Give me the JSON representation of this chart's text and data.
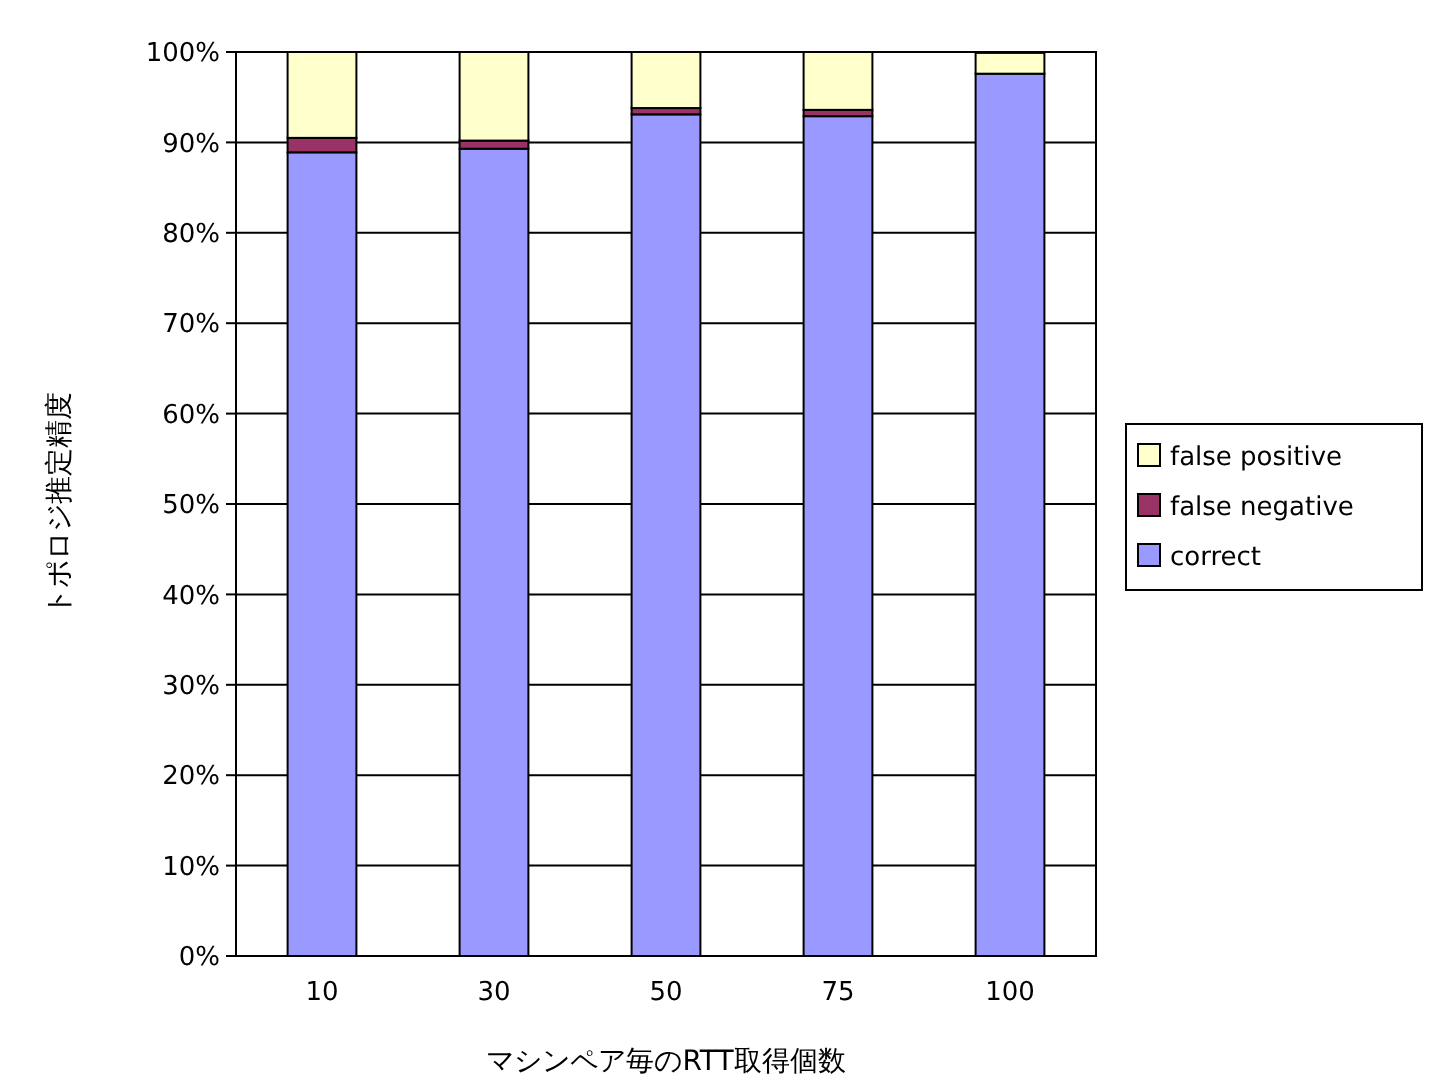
{
  "chart_data": {
    "type": "bar",
    "stacked": true,
    "xlabel": "マシンペア毎のRTT取得個数",
    "ylabel": "トポロジ推定精度",
    "categories": [
      "10",
      "30",
      "50",
      "75",
      "100"
    ],
    "series": [
      {
        "name": "correct",
        "color": "#9999ff",
        "values": [
          88.9,
          89.3,
          93.1,
          92.9,
          97.6
        ]
      },
      {
        "name": "false negative",
        "color": "#993366",
        "values": [
          1.6,
          0.9,
          0.7,
          0.7,
          null
        ]
      },
      {
        "name": "false positive",
        "color": "#ffffcc",
        "values": [
          9.5,
          9.8,
          6.2,
          6.4,
          2.3
        ]
      }
    ],
    "ylim": [
      0,
      100
    ],
    "yticks": [
      {
        "value": 0,
        "label": "0%"
      },
      {
        "value": 10,
        "label": "10%"
      },
      {
        "value": 20,
        "label": "20%"
      },
      {
        "value": 30,
        "label": "30%"
      },
      {
        "value": 40,
        "label": "40%"
      },
      {
        "value": 50,
        "label": "50%"
      },
      {
        "value": 60,
        "label": "60%"
      },
      {
        "value": 70,
        "label": "70%"
      },
      {
        "value": 80,
        "label": "80%"
      },
      {
        "value": 90,
        "label": "90%"
      },
      {
        "value": 100,
        "label": "100%"
      }
    ],
    "grid": "y",
    "legend": "right"
  }
}
